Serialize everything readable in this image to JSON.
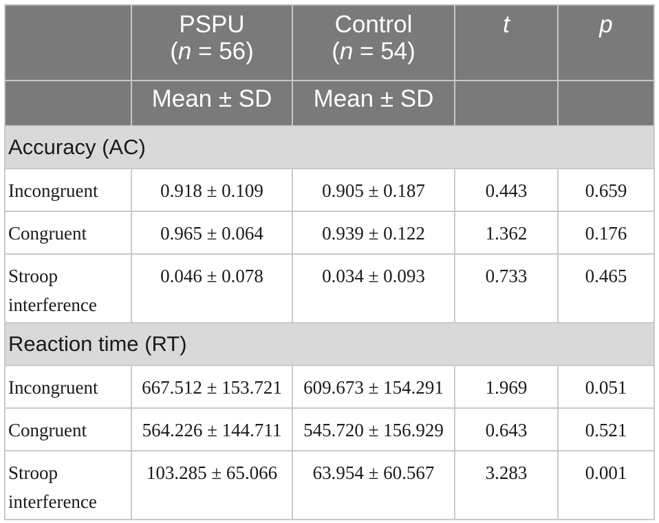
{
  "header": {
    "col1_line1": "PSPU",
    "col1_n_prefix": "(",
    "col1_n_var": "n",
    "col1_n_rest": " = 56)",
    "col2_line1": "Control",
    "col2_n_prefix": "(",
    "col2_n_var": "n",
    "col2_n_rest": " = 54)",
    "col3": "t",
    "col4": "p",
    "sub1": "Mean ± SD",
    "sub2": "Mean ± SD"
  },
  "sections": [
    {
      "title": "Accuracy (AC)",
      "rows": [
        {
          "label": "Incongruent",
          "pspu": "0.918 ± 0.109",
          "control": "0.905 ± 0.187",
          "t": "0.443",
          "p": "0.659"
        },
        {
          "label": "Congruent",
          "pspu": "0.965 ± 0.064",
          "control": "0.939 ± 0.122",
          "t": "1.362",
          "p": "0.176"
        },
        {
          "label_line1": "Stroop",
          "label_line2": "interference",
          "pspu": "0.046 ± 0.078",
          "control": "0.034 ± 0.093",
          "t": "0.733",
          "p": "0.465"
        }
      ]
    },
    {
      "title": "Reaction time (RT)",
      "rows": [
        {
          "label": "Incongruent",
          "pspu": "667.512 ± 153.721",
          "control": "609.673 ± 154.291",
          "t": "1.969",
          "p": "0.051"
        },
        {
          "label": "Congruent",
          "pspu": "564.226 ± 144.711",
          "control": "545.720 ± 156.929",
          "t": "0.643",
          "p": "0.521"
        },
        {
          "label_line1": "Stroop",
          "label_line2": "interference",
          "pspu": "103.285 ± 65.066",
          "control": "63.954 ± 60.567",
          "t": "3.283",
          "p": "0.001"
        }
      ]
    }
  ]
}
